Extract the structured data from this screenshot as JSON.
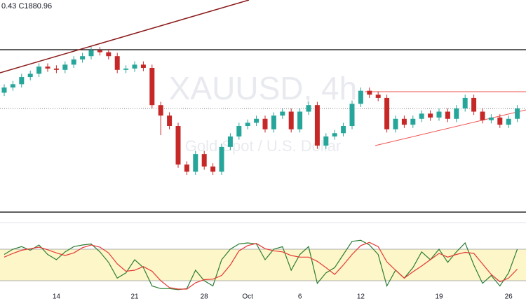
{
  "chart_data": {
    "type": "candlestick",
    "header": "0.43  C1880.96",
    "watermark": "XAUUSD, 4h",
    "watermark_sub": "Gold Spot / U.S. Dollar",
    "categories": [
      null,
      null,
      null,
      null,
      null,
      null,
      "14",
      null,
      null,
      null,
      null,
      null,
      null,
      null,
      null,
      "21",
      null,
      null,
      null,
      null,
      null,
      null,
      null,
      "28",
      null,
      null,
      null,
      null,
      "Oct",
      null,
      null,
      null,
      null,
      null,
      "6",
      null,
      null,
      null,
      null,
      null,
      null,
      "12",
      null,
      null,
      null,
      null,
      null,
      null,
      null,
      null,
      "19",
      null,
      null,
      null,
      null,
      null,
      null,
      null,
      "26",
      null
    ],
    "open": [
      1905,
      1913,
      1918,
      1929,
      1934,
      1945,
      1942,
      1940,
      1948,
      1956,
      1961,
      1970,
      1967,
      1961,
      1940,
      1942,
      1948,
      1943,
      1886,
      1870,
      1854,
      1795,
      1784,
      1811,
      1792,
      1784,
      1822,
      1838,
      1854,
      1859,
      1865,
      1849,
      1870,
      1876,
      1849,
      1876,
      1886,
      1824,
      1838,
      1843,
      1854,
      1888,
      1908,
      1902,
      1897,
      1849,
      1865,
      1856,
      1865,
      1873,
      1867,
      1876,
      1865,
      1881,
      1897,
      1876,
      1863,
      1867,
      1856,
      1865
    ],
    "high": [
      1918,
      1923,
      1934,
      1939,
      1950,
      1950,
      1947,
      1953,
      1961,
      1966,
      1975,
      1975,
      1972,
      1966,
      1947,
      1953,
      1953,
      1948,
      1891,
      1875,
      1859,
      1800,
      1816,
      1816,
      1797,
      1827,
      1843,
      1859,
      1864,
      1870,
      1870,
      1875,
      1881,
      1881,
      1881,
      1891,
      1891,
      1843,
      1848,
      1859,
      1893,
      1913,
      1913,
      1907,
      1902,
      1870,
      1870,
      1870,
      1878,
      1878,
      1881,
      1881,
      1886,
      1902,
      1902,
      1881,
      1872,
      1872,
      1870,
      1886
    ],
    "low": [
      1900,
      1908,
      1913,
      1924,
      1929,
      1937,
      1935,
      1935,
      1943,
      1951,
      1956,
      1962,
      1956,
      1935,
      1935,
      1937,
      1938,
      1881,
      1840,
      1849,
      1790,
      1779,
      1779,
      1787,
      1779,
      1779,
      1817,
      1833,
      1849,
      1854,
      1844,
      1844,
      1865,
      1844,
      1844,
      1871,
      1819,
      1819,
      1833,
      1838,
      1849,
      1883,
      1897,
      1892,
      1844,
      1844,
      1851,
      1851,
      1860,
      1862,
      1862,
      1860,
      1860,
      1876,
      1871,
      1858,
      1858,
      1851,
      1851,
      1860
    ],
    "close": [
      1913,
      1918,
      1929,
      1934,
      1945,
      1942,
      1940,
      1948,
      1956,
      1961,
      1970,
      1967,
      1961,
      1940,
      1942,
      1948,
      1943,
      1886,
      1870,
      1854,
      1795,
      1784,
      1811,
      1792,
      1784,
      1822,
      1838,
      1854,
      1859,
      1865,
      1849,
      1870,
      1876,
      1849,
      1876,
      1886,
      1824,
      1838,
      1843,
      1854,
      1888,
      1908,
      1902,
      1897,
      1849,
      1865,
      1856,
      1865,
      1873,
      1867,
      1876,
      1865,
      1881,
      1897,
      1876,
      1863,
      1867,
      1856,
      1865,
      1880.96
    ],
    "up_color": "#26a69a",
    "down_color": "#c62828",
    "ylim": [
      1720,
      2047
    ],
    "stochastic": {
      "type": "line",
      "ylim": [
        0,
        100
      ],
      "levels": [
        20,
        80
      ],
      "series": [
        {
          "color": "#2e7d32",
          "values": [
            70,
            80,
            85,
            78,
            88,
            70,
            60,
            75,
            85,
            88,
            90,
            75,
            55,
            25,
            35,
            60,
            45,
            10,
            5,
            5,
            3,
            5,
            40,
            20,
            10,
            60,
            80,
            90,
            92,
            90,
            60,
            80,
            85,
            40,
            70,
            85,
            15,
            35,
            45,
            70,
            95,
            97,
            88,
            70,
            10,
            40,
            25,
            45,
            75,
            60,
            80,
            55,
            75,
            92,
            50,
            15,
            30,
            10,
            35,
            80
          ]
        },
        {
          "color": "#e53935",
          "values": [
            65,
            72,
            78,
            81,
            84,
            79,
            73,
            68,
            73,
            83,
            88,
            84,
            73,
            52,
            38,
            40,
            47,
            38,
            20,
            7,
            4,
            4,
            16,
            22,
            23,
            30,
            50,
            77,
            87,
            91,
            81,
            77,
            75,
            68,
            65,
            65,
            57,
            45,
            32,
            50,
            70,
            87,
            93,
            85,
            56,
            40,
            25,
            37,
            48,
            60,
            72,
            65,
            70,
            74,
            72,
            52,
            32,
            18,
            25,
            42
          ]
        }
      ]
    }
  }
}
